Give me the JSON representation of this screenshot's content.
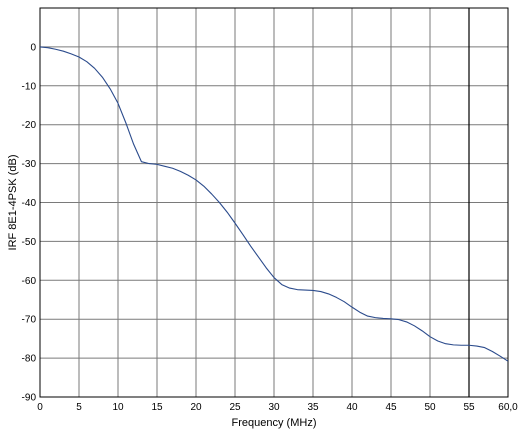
{
  "chart_data": {
    "type": "line",
    "title": "",
    "xlabel": "Frequency (MHz)",
    "ylabel": "IRF 8E1-4PSK (dB)",
    "xlim": [
      0,
      60
    ],
    "ylim": [
      -90,
      10
    ],
    "x_ticks": [
      0,
      5,
      10,
      15,
      20,
      25,
      30,
      35,
      40,
      45,
      50,
      55,
      60
    ],
    "x_tick_labels": [
      "0",
      "5",
      "10",
      "15",
      "20",
      "25",
      "30",
      "35",
      "40",
      "45",
      "50",
      "55",
      "60,0"
    ],
    "y_ticks": [
      0,
      -10,
      -20,
      -30,
      -40,
      -50,
      -60,
      -70,
      -80,
      -90
    ],
    "y_tick_labels": [
      "0",
      "-10",
      "-20",
      "-30",
      "-40",
      "-50",
      "-60",
      "-70",
      "-80",
      "-90"
    ],
    "grid": true,
    "marker_line_x": 55,
    "colors": {
      "series": "#2b4b8c",
      "grid": "#7a7a7a",
      "frame": "#000000"
    },
    "series": [
      {
        "x": [
          0,
          1,
          2,
          3,
          4,
          5,
          6,
          7,
          8,
          9,
          10,
          11,
          12,
          13,
          14,
          15,
          16,
          17,
          18,
          19,
          20,
          21,
          22,
          23,
          24,
          25,
          26,
          27,
          28,
          29,
          30,
          31,
          32,
          33,
          34,
          35,
          36,
          37,
          38,
          39,
          40,
          41,
          42,
          43,
          44,
          45,
          46,
          47,
          48,
          49,
          50,
          51,
          52,
          53,
          54,
          55,
          56,
          57,
          58,
          59,
          60
        ],
        "values": [
          0,
          -0.2,
          -0.6,
          -1.1,
          -1.8,
          -2.6,
          -3.8,
          -5.5,
          -7.8,
          -10.8,
          -14.5,
          -19.5,
          -25,
          -29.5,
          -30,
          -30.2,
          -30.7,
          -31.2,
          -32,
          -33,
          -34.2,
          -35.8,
          -37.8,
          -40,
          -42.5,
          -45.3,
          -48.2,
          -51.2,
          -54,
          -56.8,
          -59.3,
          -61.1,
          -62,
          -62.4,
          -62.5,
          -62.6,
          -62.9,
          -63.5,
          -64.4,
          -65.5,
          -66.9,
          -68.2,
          -69.2,
          -69.6,
          -69.8,
          -69.9,
          -70.1,
          -70.7,
          -71.7,
          -73,
          -74.5,
          -75.6,
          -76.3,
          -76.6,
          -76.7,
          -76.7,
          -76.9,
          -77.3,
          -78.3,
          -79.5,
          -80.8
        ]
      }
    ]
  }
}
